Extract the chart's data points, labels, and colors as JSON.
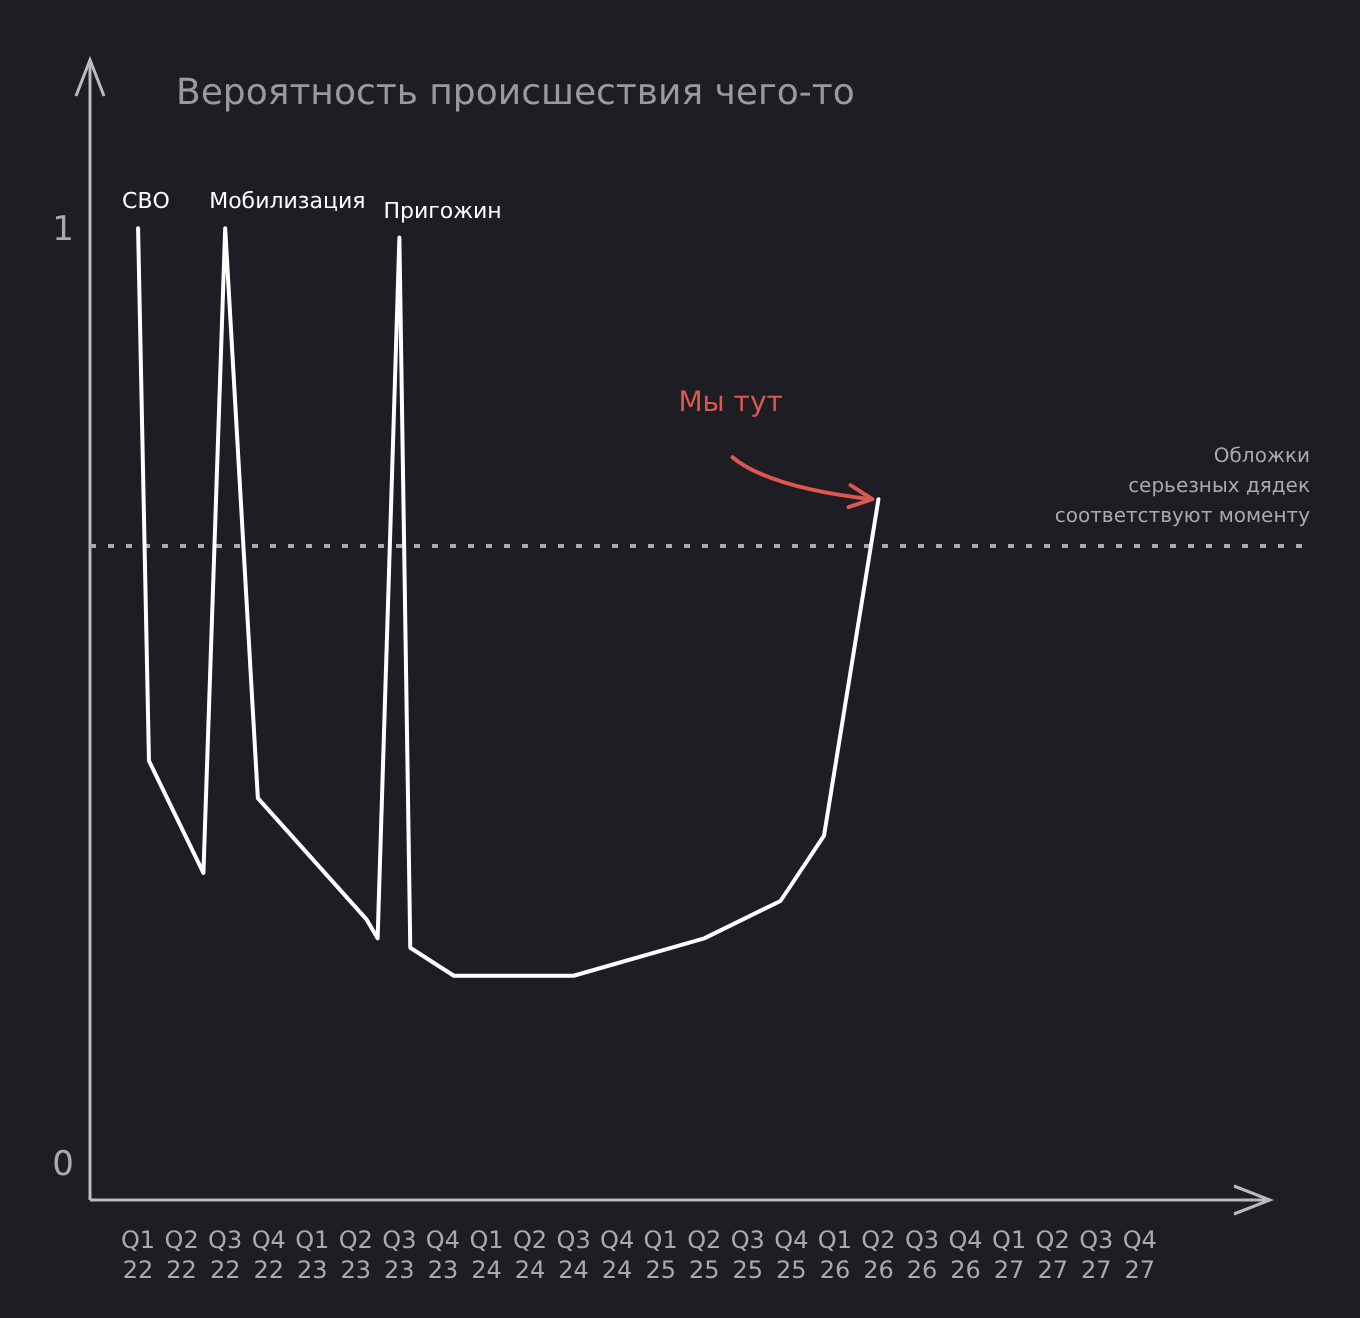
{
  "chart_data": {
    "type": "line",
    "title": "Вероятность происшествия чего-то",
    "categories": [
      "Q1 22",
      null,
      null,
      null,
      "Q2 22",
      null,
      null,
      null,
      "Q3 22",
      null,
      null,
      null,
      "Q4 22",
      null,
      null,
      null,
      "Q1 23",
      null,
      null,
      null,
      "Q2 23",
      null,
      null,
      null,
      "Q3 23",
      null,
      null,
      null,
      "Q4 23",
      null,
      null,
      null,
      "Q1 24",
      null,
      null,
      null,
      "Q2 24",
      null,
      null,
      null,
      "Q3 24",
      null,
      null,
      null,
      "Q4 24",
      null,
      null,
      null,
      "Q1 25",
      null,
      null,
      null,
      "Q2 25",
      null,
      null,
      null,
      "Q3 25",
      null,
      null,
      null,
      "Q4 25",
      null,
      null,
      null,
      "Q1 26",
      null,
      null,
      null,
      "Q2 26",
      null,
      null,
      null,
      "Q3 26",
      null,
      null,
      null,
      "Q4 26",
      null,
      null,
      null,
      "Q1 27",
      null,
      null,
      null,
      "Q2 27",
      null,
      null,
      null,
      "Q3 27",
      null,
      null,
      null,
      "Q4 27"
    ],
    "series": [
      {
        "color": "#ffffff",
        "values": [
          1.0,
          0.43,
          null,
          null,
          null,
          null,
          0.31,
          null,
          1.0,
          null,
          null,
          0.39,
          null,
          null,
          null,
          null,
          null,
          null,
          null,
          null,
          null,
          0.26,
          0.24,
          null,
          0.99,
          0.23,
          null,
          null,
          null,
          0.2,
          null,
          null,
          null,
          null,
          null,
          null,
          null,
          null,
          null,
          null,
          0.2,
          null,
          null,
          null,
          null,
          null,
          null,
          null,
          null,
          null,
          null,
          null,
          0.24,
          null,
          null,
          null,
          null,
          null,
          null,
          0.28,
          null,
          null,
          null,
          0.35,
          null,
          null,
          null,
          null,
          0.71,
          null,
          null,
          null,
          null,
          null,
          null,
          null,
          null,
          null,
          null,
          null,
          null,
          null,
          null,
          null,
          null,
          null,
          null,
          null,
          null,
          null,
          null,
          null,
          null
        ]
      }
    ],
    "ylim": [
      -0.04,
      1.18
    ],
    "yticks": [
      0,
      1
    ],
    "grid": false,
    "ref_lines": [
      {
        "axis": "y",
        "value": 0.66,
        "label": "Обложки\nсерьезных дядек\nсоответствуют моменту",
        "color": "#aaaaaa",
        "line_style": "dotted"
      }
    ],
    "annotations": [
      "СВО",
      "Мобилизация",
      "Пригожин",
      "Мы тут"
    ]
  }
}
